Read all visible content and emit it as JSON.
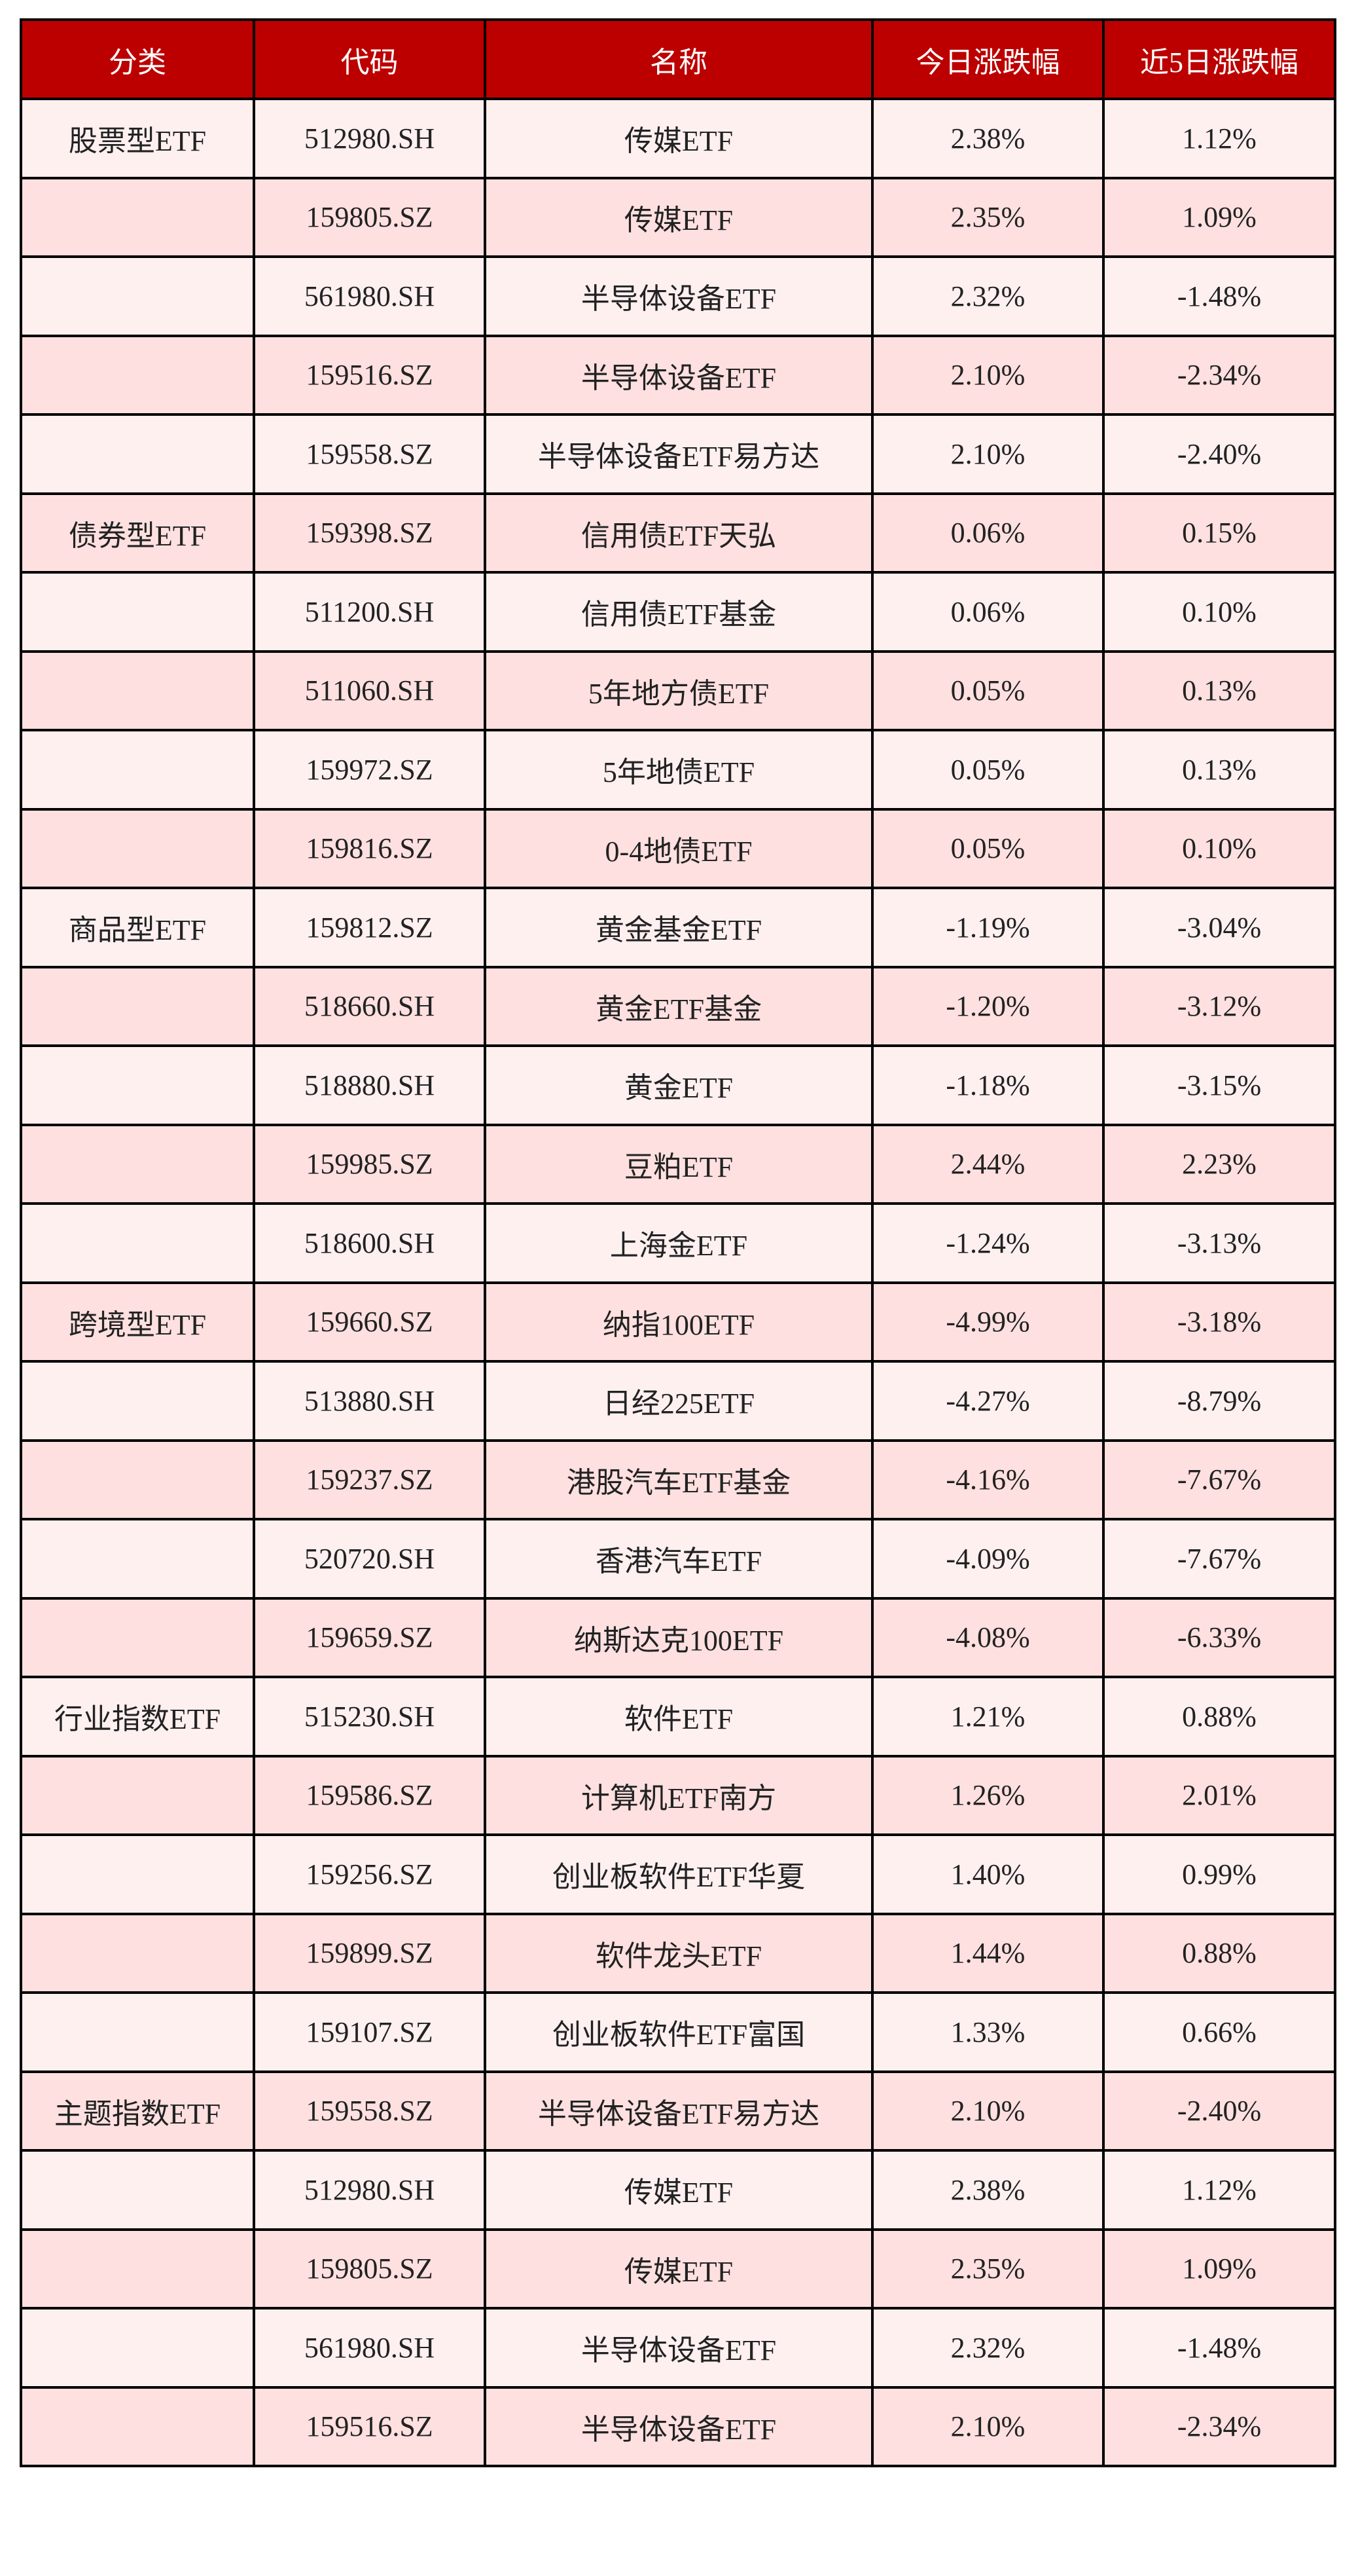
{
  "table": {
    "headers": [
      "分类",
      "代码",
      "名称",
      "今日涨跌幅",
      "近5日涨跌幅"
    ],
    "colors": {
      "header_bg": "#BC0000",
      "row_light": "#FFF0F0",
      "row_dark": "#FFE0E0"
    },
    "rows": [
      [
        "股票型ETF",
        "512980.SH",
        "传媒ETF",
        "2.38%",
        "1.12%"
      ],
      [
        "",
        "159805.SZ",
        "传媒ETF",
        "2.35%",
        "1.09%"
      ],
      [
        "",
        "561980.SH",
        "半导体设备ETF",
        "2.32%",
        "-1.48%"
      ],
      [
        "",
        "159516.SZ",
        "半导体设备ETF",
        "2.10%",
        "-2.34%"
      ],
      [
        "",
        "159558.SZ",
        "半导体设备ETF易方达",
        "2.10%",
        "-2.40%"
      ],
      [
        "债券型ETF",
        "159398.SZ",
        "信用债ETF天弘",
        "0.06%",
        "0.15%"
      ],
      [
        "",
        "511200.SH",
        "信用债ETF基金",
        "0.06%",
        "0.10%"
      ],
      [
        "",
        "511060.SH",
        "5年地方债ETF",
        "0.05%",
        "0.13%"
      ],
      [
        "",
        "159972.SZ",
        "5年地债ETF",
        "0.05%",
        "0.13%"
      ],
      [
        "",
        "159816.SZ",
        "0-4地债ETF",
        "0.05%",
        "0.10%"
      ],
      [
        "商品型ETF",
        "159812.SZ",
        "黄金基金ETF",
        "-1.19%",
        "-3.04%"
      ],
      [
        "",
        "518660.SH",
        "黄金ETF基金",
        "-1.20%",
        "-3.12%"
      ],
      [
        "",
        "518880.SH",
        "黄金ETF",
        "-1.18%",
        "-3.15%"
      ],
      [
        "",
        "159985.SZ",
        "豆粕ETF",
        "2.44%",
        "2.23%"
      ],
      [
        "",
        "518600.SH",
        "上海金ETF",
        "-1.24%",
        "-3.13%"
      ],
      [
        "跨境型ETF",
        "159660.SZ",
        "纳指100ETF",
        "-4.99%",
        "-3.18%"
      ],
      [
        "",
        "513880.SH",
        "日经225ETF",
        "-4.27%",
        "-8.79%"
      ],
      [
        "",
        "159237.SZ",
        "港股汽车ETF基金",
        "-4.16%",
        "-7.67%"
      ],
      [
        "",
        "520720.SH",
        "香港汽车ETF",
        "-4.09%",
        "-7.67%"
      ],
      [
        "",
        "159659.SZ",
        "纳斯达克100ETF",
        "-4.08%",
        "-6.33%"
      ],
      [
        "行业指数ETF",
        "515230.SH",
        "软件ETF",
        "1.21%",
        "0.88%"
      ],
      [
        "",
        "159586.SZ",
        "计算机ETF南方",
        "1.26%",
        "2.01%"
      ],
      [
        "",
        "159256.SZ",
        "创业板软件ETF华夏",
        "1.40%",
        "0.99%"
      ],
      [
        "",
        "159899.SZ",
        "软件龙头ETF",
        "1.44%",
        "0.88%"
      ],
      [
        "",
        "159107.SZ",
        "创业板软件ETF富国",
        "1.33%",
        "0.66%"
      ],
      [
        "主题指数ETF",
        "159558.SZ",
        "半导体设备ETF易方达",
        "2.10%",
        "-2.40%"
      ],
      [
        "",
        "512980.SH",
        "传媒ETF",
        "2.38%",
        "1.12%"
      ],
      [
        "",
        "159805.SZ",
        "传媒ETF",
        "2.35%",
        "1.09%"
      ],
      [
        "",
        "561980.SH",
        "半导体设备ETF",
        "2.32%",
        "-1.48%"
      ],
      [
        "",
        "159516.SZ",
        "半导体设备ETF",
        "2.10%",
        "-2.34%"
      ]
    ]
  }
}
